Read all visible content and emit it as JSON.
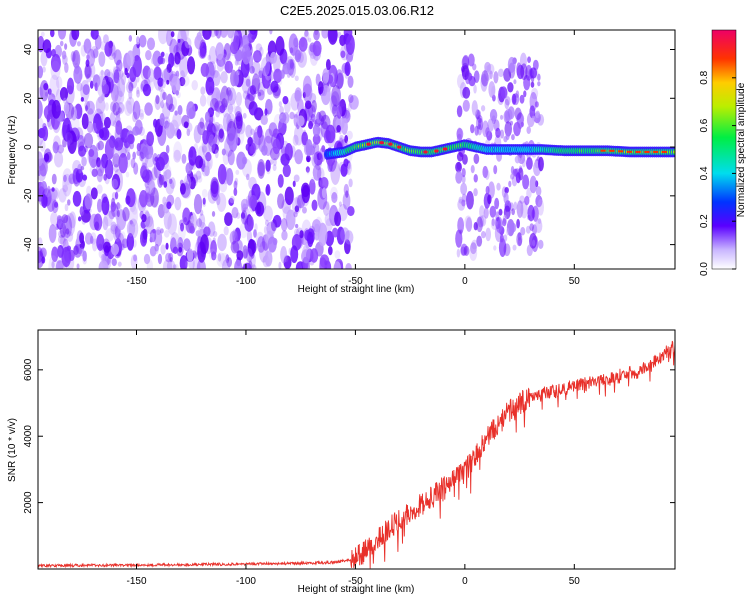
{
  "title": "C2E5.2025.015.03.06.R12",
  "chart_data": [
    {
      "type": "heatmap",
      "xlabel": "Height of straight line (km)",
      "ylabel": "Frequency (Hz)",
      "xlim": [
        -195,
        96
      ],
      "ylim": [
        -50,
        48
      ],
      "xticks": [
        -150,
        -100,
        -50,
        0,
        50
      ],
      "yticks": [
        -40,
        -20,
        0,
        20,
        40
      ],
      "noise_region_x": [
        -195,
        -52
      ],
      "noise_burst_x": [
        -3,
        35
      ],
      "signal_track": {
        "x": [
          -63,
          -55,
          -50,
          -45,
          -40,
          -35,
          -30,
          -25,
          -20,
          -15,
          -10,
          -5,
          0,
          5,
          10,
          15,
          20,
          25,
          30,
          35,
          45,
          55,
          65,
          75,
          85,
          96
        ],
        "freq": [
          -3,
          -2,
          0,
          1,
          2,
          1.5,
          0,
          -1.5,
          -2,
          -2,
          -1,
          0,
          1,
          0,
          -1,
          -1,
          -1,
          -1,
          -1,
          -1,
          -1.5,
          -1.5,
          -1.5,
          -2,
          -2,
          -2
        ],
        "amplitude": [
          0.3,
          0.45,
          0.6,
          0.7,
          0.75,
          0.7,
          0.65,
          0.6,
          0.6,
          0.62,
          0.65,
          0.6,
          0.55,
          0.45,
          0.4,
          0.4,
          0.4,
          0.4,
          0.4,
          0.45,
          0.5,
          0.55,
          0.6,
          0.65,
          0.7,
          0.7
        ]
      }
    },
    {
      "type": "line",
      "xlabel": "Height of straight line (km)",
      "ylabel": "SNR (10 * v/v)",
      "xlim": [
        -195,
        96
      ],
      "ylim": [
        0,
        7200
      ],
      "xticks": [
        -150,
        -100,
        -50,
        0,
        50
      ],
      "yticks": [
        2000,
        4000,
        6000
      ],
      "series": [
        {
          "name": "SNR",
          "color": "#e8302a",
          "x": [
            -195,
            -150,
            -100,
            -75,
            -60,
            -52,
            -48,
            -44,
            -40,
            -35,
            -30,
            -25,
            -20,
            -15,
            -10,
            -5,
            0,
            5,
            10,
            15,
            20,
            25,
            30,
            35,
            40,
            50,
            60,
            70,
            80,
            85,
            90,
            96
          ],
          "y": [
            100,
            120,
            150,
            170,
            200,
            280,
            420,
            620,
            900,
            1200,
            1500,
            1750,
            1950,
            2150,
            2450,
            2700,
            3000,
            3400,
            3950,
            4350,
            4750,
            5000,
            5150,
            5250,
            5350,
            5500,
            5650,
            5800,
            5950,
            6150,
            6450,
            6700
          ]
        }
      ]
    }
  ],
  "colorbar": {
    "label": "Normalized spectral amplitude",
    "ticks": [
      "0.0",
      "0.2",
      "0.4",
      "0.6",
      "0.8"
    ],
    "range": [
      0,
      1
    ]
  }
}
